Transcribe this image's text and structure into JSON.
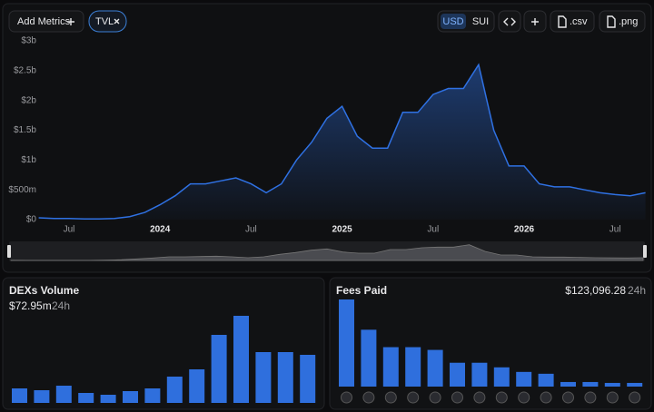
{
  "toolbar": {
    "add_metrics": "Add Metrics",
    "metric": "TVL",
    "currencies": [
      "USD",
      "SUI"
    ],
    "downloads": [
      ".csv",
      ".png"
    ]
  },
  "chart_data": [
    {
      "type": "line",
      "color": "#2f71e3",
      "grid": false,
      "categories": [
        null,
        null,
        "Jul",
        null,
        null,
        null,
        null,
        null,
        "2024",
        null,
        null,
        null,
        null,
        null,
        "Jul",
        null,
        null,
        null,
        null,
        null,
        "2025",
        null,
        null,
        null,
        null,
        null,
        "Jul",
        null,
        null,
        null,
        null,
        null,
        "2026",
        null,
        null,
        null,
        null,
        null,
        "Jul",
        null,
        null
      ],
      "values": [
        0.03,
        0.02,
        0.02,
        0.01,
        0.01,
        0.02,
        0.05,
        0.12,
        0.25,
        0.4,
        0.6,
        0.6,
        0.65,
        0.7,
        0.6,
        0.45,
        0.6,
        1.0,
        1.3,
        1.7,
        1.9,
        1.4,
        1.2,
        1.2,
        1.8,
        1.8,
        2.1,
        2.2,
        2.2,
        2.6,
        1.5,
        0.9,
        0.9,
        0.6,
        0.55,
        0.55,
        0.5,
        0.45,
        0.42,
        0.4,
        0.45
      ],
      "ylim": [
        0,
        3
      ],
      "yticks": [
        {
          "value": 0,
          "label": "$0"
        },
        {
          "value": 0.5,
          "label": "$500m"
        },
        {
          "value": 1,
          "label": "$1b"
        },
        {
          "value": 1.5,
          "label": "$1.5b"
        },
        {
          "value": 2,
          "label": "$2b"
        },
        {
          "value": 2.5,
          "label": "$2.5b"
        },
        {
          "value": 3,
          "label": "$3b"
        }
      ]
    },
    {
      "type": "bar",
      "title": "DEXs Volume",
      "total": "$72.95m",
      "period": "24h",
      "color": "#2f6fdd",
      "values": [
        16,
        14,
        19,
        11,
        9,
        13,
        16,
        29,
        37,
        75,
        96,
        56,
        56,
        53
      ]
    },
    {
      "type": "bar",
      "title": "Fees Paid",
      "total": "$123,096.28",
      "period": "24h",
      "color": "#2f6fdd",
      "values": [
        95,
        62,
        43,
        43,
        40,
        26,
        26,
        21,
        16,
        14,
        5,
        5,
        4,
        4
      ]
    }
  ]
}
